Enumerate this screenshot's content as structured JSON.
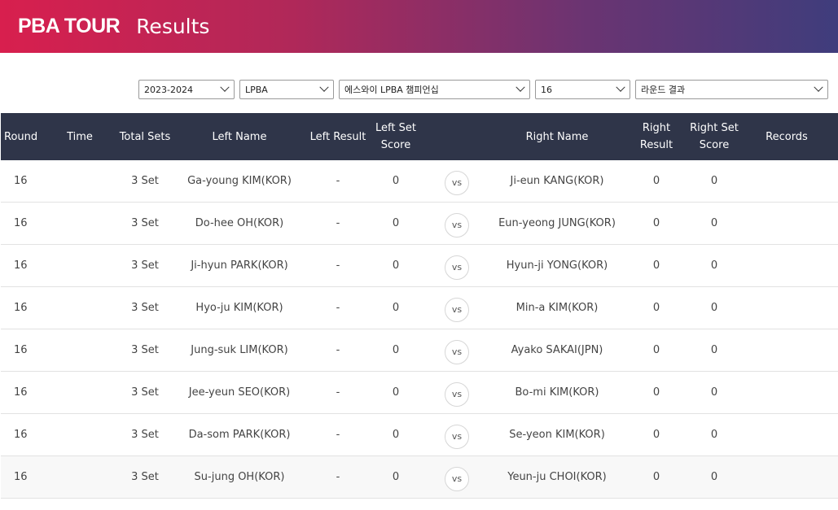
{
  "header": {
    "logo": "PBA TOUR",
    "title": "Results"
  },
  "filters": {
    "season": "2023-2024",
    "league": "LPBA",
    "tournament": "에스와이 LPBA 챔피언십",
    "round": "16",
    "view": "라운드 결과"
  },
  "columns": {
    "round": "Round",
    "time": "Time",
    "total_sets": "Total Sets",
    "left_name": "Left Name",
    "left_result": "Left Result",
    "left_set_score_1": "Left Set",
    "left_set_score_2": "Score",
    "right_name": "Right Name",
    "right_result_1": "Right",
    "right_result_2": "Result",
    "right_set_score_1": "Right Set",
    "right_set_score_2": "Score",
    "records": "Records"
  },
  "vs_label": "vs",
  "rows": [
    {
      "round": "16",
      "time": "",
      "sets": "3 Set",
      "left_name": "Ga-young KIM(KOR)",
      "left_result": "-",
      "left_score": "0",
      "right_name": "Ji-eun KANG(KOR)",
      "right_result": "0",
      "right_score": "0",
      "records": ""
    },
    {
      "round": "16",
      "time": "",
      "sets": "3 Set",
      "left_name": "Do-hee OH(KOR)",
      "left_result": "-",
      "left_score": "0",
      "right_name": "Eun-yeong JUNG(KOR)",
      "right_result": "0",
      "right_score": "0",
      "records": ""
    },
    {
      "round": "16",
      "time": "",
      "sets": "3 Set",
      "left_name": "Ji-hyun PARK(KOR)",
      "left_result": "-",
      "left_score": "0",
      "right_name": "Hyun-ji YONG(KOR)",
      "right_result": "0",
      "right_score": "0",
      "records": ""
    },
    {
      "round": "16",
      "time": "",
      "sets": "3 Set",
      "left_name": "Hyo-ju KIM(KOR)",
      "left_result": "-",
      "left_score": "0",
      "right_name": "Min-a KIM(KOR)",
      "right_result": "0",
      "right_score": "0",
      "records": ""
    },
    {
      "round": "16",
      "time": "",
      "sets": "3 Set",
      "left_name": "Jung-suk LIM(KOR)",
      "left_result": "-",
      "left_score": "0",
      "right_name": "Ayako SAKAI(JPN)",
      "right_result": "0",
      "right_score": "0",
      "records": ""
    },
    {
      "round": "16",
      "time": "",
      "sets": "3 Set",
      "left_name": "Jee-yeun SEO(KOR)",
      "left_result": "-",
      "left_score": "0",
      "right_name": "Bo-mi KIM(KOR)",
      "right_result": "0",
      "right_score": "0",
      "records": ""
    },
    {
      "round": "16",
      "time": "",
      "sets": "3 Set",
      "left_name": "Da-som PARK(KOR)",
      "left_result": "-",
      "left_score": "0",
      "right_name": "Se-yeon KIM(KOR)",
      "right_result": "0",
      "right_score": "0",
      "records": ""
    },
    {
      "round": "16",
      "time": "",
      "sets": "3 Set",
      "left_name": "Su-jung OH(KOR)",
      "left_result": "-",
      "left_score": "0",
      "right_name": "Yeun-ju CHOI(KOR)",
      "right_result": "0",
      "right_score": "0",
      "records": ""
    }
  ]
}
